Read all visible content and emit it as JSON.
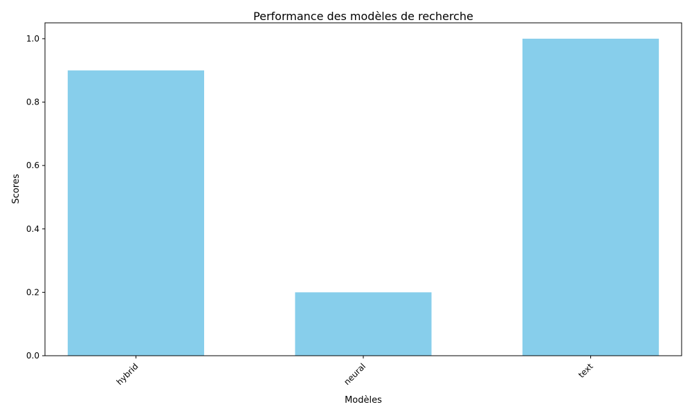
{
  "chart_data": {
    "type": "bar",
    "title": "Performance des modèles de recherche",
    "xlabel": "Modèles",
    "ylabel": "Scores",
    "categories": [
      "hybrid",
      "neural",
      "text"
    ],
    "values": [
      0.9,
      0.2,
      1.0
    ],
    "ylim": [
      0,
      1.05
    ],
    "yticks": [
      "0.0",
      "0.2",
      "0.4",
      "0.6",
      "0.8",
      "1.0"
    ],
    "grid": false,
    "legend": "none",
    "bar_color": "#87CEEB",
    "axis_color": "#000000"
  }
}
